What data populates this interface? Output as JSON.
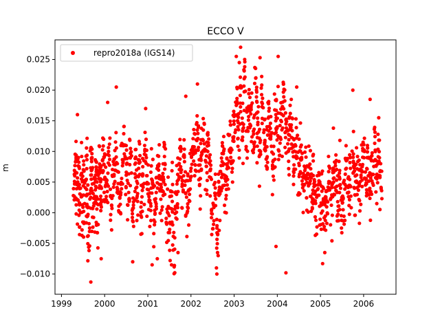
{
  "chart_data": {
    "type": "scatter",
    "title": "ECCO V",
    "xlabel": "",
    "ylabel": "m",
    "xlim": [
      1998.85,
      2006.75
    ],
    "ylim": [
      -0.0133,
      0.0282
    ],
    "x_ticks": [
      1999,
      2000,
      2001,
      2002,
      2003,
      2004,
      2005,
      2006
    ],
    "x_tick_labels": [
      "1999",
      "2000",
      "2001",
      "2002",
      "2003",
      "2004",
      "2005",
      "2006"
    ],
    "y_ticks": [
      -0.01,
      -0.005,
      0.0,
      0.005,
      0.01,
      0.015,
      0.02,
      0.025
    ],
    "y_tick_labels": [
      "−0.010",
      "−0.005",
      "0.000",
      "0.005",
      "0.010",
      "0.015",
      "0.020",
      "0.025"
    ],
    "grid": false,
    "legend_position": "upper-left",
    "series": [
      {
        "name": "repro2018a (IGS14)",
        "color": "#ff0000",
        "marker": "circle",
        "x": [
          1999.3,
          1999.33,
          1999.36,
          1999.4,
          1999.43,
          1999.47,
          1999.5,
          1999.53,
          1999.57,
          1999.6,
          1999.63,
          1999.67,
          1999.7,
          1999.73,
          1999.77,
          1999.8,
          1999.83,
          1999.87,
          1999.9,
          1999.93,
          1999.97,
          2000.0,
          2000.05,
          2000.1,
          2000.15,
          2000.2,
          2000.25,
          2000.3,
          2000.35,
          2000.4,
          2000.45,
          2000.5,
          2000.55,
          2000.6,
          2000.65,
          2000.7,
          2000.75,
          2000.8,
          2000.85,
          2000.9,
          2000.95,
          2001.0,
          2001.05,
          2001.1,
          2001.15,
          2001.2,
          2001.25,
          2001.3,
          2001.35,
          2001.4,
          2001.45,
          2001.5,
          2001.55,
          2001.6,
          2001.65,
          2001.7,
          2001.75,
          2001.8,
          2001.85,
          2001.9,
          2001.95,
          2002.0,
          2002.05,
          2002.1,
          2002.15,
          2002.2,
          2002.25,
          2002.3,
          2002.35,
          2002.4,
          2002.45,
          2002.5,
          2002.55,
          2002.6,
          2002.65,
          2002.7,
          2002.75,
          2002.8,
          2002.85,
          2002.9,
          2002.95,
          2003.0,
          2003.05,
          2003.1,
          2003.15,
          2003.2,
          2003.25,
          2003.3,
          2003.35,
          2003.4,
          2003.45,
          2003.5,
          2003.55,
          2003.6,
          2003.65,
          2003.7,
          2003.75,
          2003.8,
          2003.85,
          2003.9,
          2003.95,
          2004.0,
          2004.05,
          2004.1,
          2004.15,
          2004.2,
          2004.25,
          2004.3,
          2004.35,
          2004.4,
          2004.45,
          2004.5,
          2004.55,
          2004.6,
          2004.65,
          2004.7,
          2004.75,
          2004.8,
          2004.85,
          2004.9,
          2004.95,
          2005.0,
          2005.05,
          2005.1,
          2005.15,
          2005.2,
          2005.25,
          2005.3,
          2005.35,
          2005.4,
          2005.45,
          2005.5,
          2005.55,
          2005.6,
          2005.65,
          2005.7,
          2005.75,
          2005.8,
          2005.85,
          2005.9,
          2005.95,
          2006.0,
          2006.05,
          2006.1,
          2006.15,
          2006.2,
          2006.25,
          2006.3,
          2006.35,
          2006.4
        ],
        "y": [
          0.0045,
          0.008,
          0.002,
          0.0055,
          0.0005,
          0.006,
          -0.001,
          0.0035,
          0.007,
          0.002,
          -0.003,
          0.005,
          0.0085,
          0.001,
          0.004,
          0.0065,
          0.0,
          0.0075,
          0.003,
          0.0055,
          0.009,
          0.006,
          0.0035,
          0.0085,
          0.001,
          0.0065,
          0.0095,
          0.0045,
          0.0015,
          0.0075,
          0.0105,
          0.0055,
          0.0025,
          0.008,
          0.0005,
          0.006,
          0.0035,
          0.0085,
          0.001,
          0.0065,
          0.0095,
          0.0045,
          0.0015,
          0.006,
          -0.001,
          0.0035,
          0.0075,
          0.0025,
          0.0055,
          0.009,
          0.0005,
          -0.003,
          0.0035,
          -0.0045,
          0.0015,
          0.0055,
          0.0095,
          0.0045,
          0.0075,
          0.0005,
          0.0035,
          0.0065,
          0.0115,
          0.0085,
          0.0135,
          0.0055,
          0.0095,
          0.0125,
          0.0075,
          0.0105,
          0.0065,
          0.0005,
          0.0035,
          -0.003,
          0.002,
          0.0055,
          0.0095,
          0.0045,
          0.0075,
          0.0115,
          0.0085,
          0.0145,
          0.0175,
          0.0125,
          0.0195,
          0.0155,
          0.0215,
          0.0135,
          0.0185,
          0.0165,
          0.0125,
          0.0205,
          0.0145,
          0.0105,
          0.0175,
          0.0125,
          0.0085,
          0.0155,
          0.0115,
          0.0075,
          0.0135,
          0.0165,
          0.0115,
          0.0145,
          0.0185,
          0.0135,
          0.0105,
          0.0155,
          0.0125,
          0.0085,
          0.0115,
          0.0065,
          0.0095,
          0.0045,
          0.0075,
          0.0035,
          0.0065,
          0.0025,
          0.0055,
          0.0015,
          0.0045,
          0.0005,
          0.0035,
          -0.001,
          0.0025,
          0.0055,
          0.0015,
          0.0045,
          0.0075,
          0.0025,
          0.0055,
          0.0005,
          0.0035,
          0.0065,
          0.0025,
          0.0055,
          0.0085,
          0.0045,
          0.0075,
          0.0035,
          0.0065,
          0.0095,
          0.0055,
          0.0085,
          0.0045,
          0.0075,
          0.0105,
          0.0065,
          0.0095,
          0.0055
        ]
      }
    ],
    "outliers": {
      "x": [
        1999.37,
        1999.68,
        1999.92,
        2000.07,
        2000.27,
        2000.65,
        2000.95,
        2001.1,
        2001.22,
        2001.55,
        2001.7,
        2001.88,
        2002.15,
        2002.6,
        2002.63,
        2003.05,
        2003.12,
        2003.15,
        2003.6,
        2003.97,
        2004.02,
        2004.2,
        2004.45,
        2005.05,
        2005.1,
        2005.3,
        2005.45,
        2005.75,
        2006.15,
        2006.35
      ],
      "y": [
        0.016,
        -0.0113,
        -0.0075,
        0.018,
        0.0205,
        -0.008,
        0.017,
        -0.0085,
        -0.0075,
        -0.0085,
        -0.0065,
        0.019,
        0.021,
        -0.01,
        -0.007,
        0.0255,
        0.0245,
        0.027,
        0.0253,
        -0.0055,
        0.0255,
        -0.0098,
        0.0205,
        -0.0083,
        -0.0065,
        0.0138,
        0.0118,
        0.02,
        0.0185,
        0.0155
      ]
    }
  }
}
